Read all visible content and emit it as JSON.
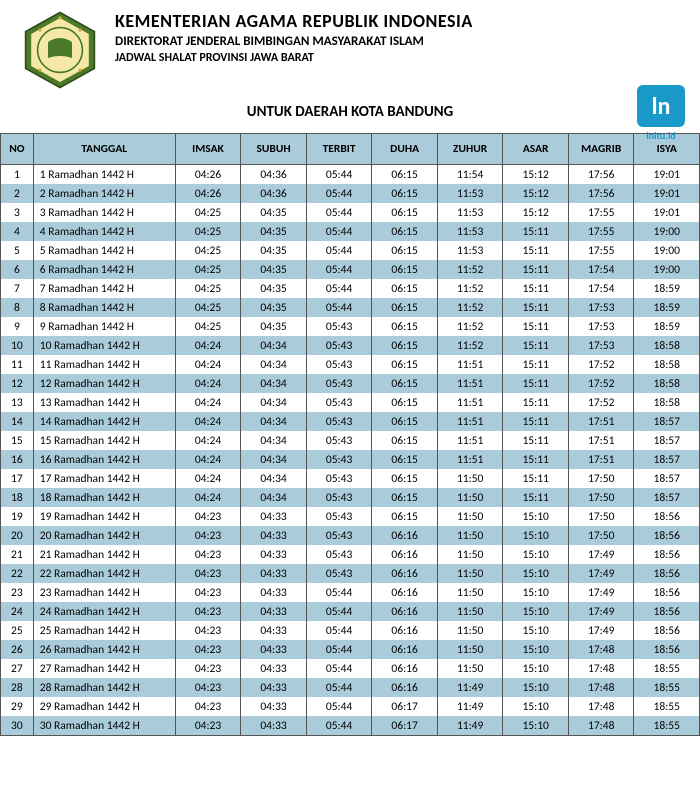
{
  "header": {
    "title": "KEMENTERIAN AGAMA REPUBLIK INDONESIA",
    "subtitle1": "DIREKTORAT JENDERAL BIMBINGAN MASYARAKAT ISLAM",
    "subtitle2": "JADWAL SHALAT PROVINSI JAWA BARAT",
    "region": "UNTUK DAERAH KOTA BANDUNG"
  },
  "brand": {
    "glyph": "ln",
    "label": "initu.id"
  },
  "logo": {
    "outer_color": "#4b7a2a",
    "inner_color": "#f6e9a8",
    "star_color": "#d4af37"
  },
  "colors": {
    "header_bg": "#aaccda",
    "row_even_bg": "#aaccda",
    "row_odd_bg": "#ffffff",
    "border": "#555555",
    "brand_bg": "#1a99c9"
  },
  "table": {
    "columns": [
      "NO",
      "TANGGAL",
      "IMSAK",
      "SUBUH",
      "TERBIT",
      "DUHA",
      "ZUHUR",
      "ASAR",
      "MAGRIB",
      "ISYA"
    ],
    "rows": [
      {
        "no": 1,
        "tanggal": "1 Ramadhan 1442 H",
        "imsak": "04:26",
        "subuh": "04:36",
        "terbit": "05:44",
        "duha": "06:15",
        "zuhur": "11:54",
        "asar": "15:12",
        "magrib": "17:56",
        "isya": "19:01"
      },
      {
        "no": 2,
        "tanggal": "2 Ramadhan 1442 H",
        "imsak": "04:26",
        "subuh": "04:36",
        "terbit": "05:44",
        "duha": "06:15",
        "zuhur": "11:53",
        "asar": "15:12",
        "magrib": "17:56",
        "isya": "19:01"
      },
      {
        "no": 3,
        "tanggal": "3 Ramadhan 1442 H",
        "imsak": "04:25",
        "subuh": "04:35",
        "terbit": "05:44",
        "duha": "06:15",
        "zuhur": "11:53",
        "asar": "15:12",
        "magrib": "17:55",
        "isya": "19:01"
      },
      {
        "no": 4,
        "tanggal": "4 Ramadhan 1442 H",
        "imsak": "04:25",
        "subuh": "04:35",
        "terbit": "05:44",
        "duha": "06:15",
        "zuhur": "11:53",
        "asar": "15:11",
        "magrib": "17:55",
        "isya": "19:00"
      },
      {
        "no": 5,
        "tanggal": "5 Ramadhan 1442 H",
        "imsak": "04:25",
        "subuh": "04:35",
        "terbit": "05:44",
        "duha": "06:15",
        "zuhur": "11:53",
        "asar": "15:11",
        "magrib": "17:55",
        "isya": "19:00"
      },
      {
        "no": 6,
        "tanggal": "6 Ramadhan 1442 H",
        "imsak": "04:25",
        "subuh": "04:35",
        "terbit": "05:44",
        "duha": "06:15",
        "zuhur": "11:52",
        "asar": "15:11",
        "magrib": "17:54",
        "isya": "19:00"
      },
      {
        "no": 7,
        "tanggal": "7 Ramadhan 1442 H",
        "imsak": "04:25",
        "subuh": "04:35",
        "terbit": "05:44",
        "duha": "06:15",
        "zuhur": "11:52",
        "asar": "15:11",
        "magrib": "17:54",
        "isya": "18:59"
      },
      {
        "no": 8,
        "tanggal": "8 Ramadhan 1442 H",
        "imsak": "04:25",
        "subuh": "04:35",
        "terbit": "05:44",
        "duha": "06:15",
        "zuhur": "11:52",
        "asar": "15:11",
        "magrib": "17:53",
        "isya": "18:59"
      },
      {
        "no": 9,
        "tanggal": "9 Ramadhan 1442 H",
        "imsak": "04:25",
        "subuh": "04:35",
        "terbit": "05:43",
        "duha": "06:15",
        "zuhur": "11:52",
        "asar": "15:11",
        "magrib": "17:53",
        "isya": "18:59"
      },
      {
        "no": 10,
        "tanggal": "10 Ramadhan 1442 H",
        "imsak": "04:24",
        "subuh": "04:34",
        "terbit": "05:43",
        "duha": "06:15",
        "zuhur": "11:52",
        "asar": "15:11",
        "magrib": "17:53",
        "isya": "18:58"
      },
      {
        "no": 11,
        "tanggal": "11 Ramadhan 1442 H",
        "imsak": "04:24",
        "subuh": "04:34",
        "terbit": "05:43",
        "duha": "06:15",
        "zuhur": "11:51",
        "asar": "15:11",
        "magrib": "17:52",
        "isya": "18:58"
      },
      {
        "no": 12,
        "tanggal": "12 Ramadhan 1442 H",
        "imsak": "04:24",
        "subuh": "04:34",
        "terbit": "05:43",
        "duha": "06:15",
        "zuhur": "11:51",
        "asar": "15:11",
        "magrib": "17:52",
        "isya": "18:58"
      },
      {
        "no": 13,
        "tanggal": "13 Ramadhan 1442 H",
        "imsak": "04:24",
        "subuh": "04:34",
        "terbit": "05:43",
        "duha": "06:15",
        "zuhur": "11:51",
        "asar": "15:11",
        "magrib": "17:52",
        "isya": "18:58"
      },
      {
        "no": 14,
        "tanggal": "14 Ramadhan 1442 H",
        "imsak": "04:24",
        "subuh": "04:34",
        "terbit": "05:43",
        "duha": "06:15",
        "zuhur": "11:51",
        "asar": "15:11",
        "magrib": "17:51",
        "isya": "18:57"
      },
      {
        "no": 15,
        "tanggal": "15 Ramadhan 1442 H",
        "imsak": "04:24",
        "subuh": "04:34",
        "terbit": "05:43",
        "duha": "06:15",
        "zuhur": "11:51",
        "asar": "15:11",
        "magrib": "17:51",
        "isya": "18:57"
      },
      {
        "no": 16,
        "tanggal": "16 Ramadhan 1442 H",
        "imsak": "04:24",
        "subuh": "04:34",
        "terbit": "05:43",
        "duha": "06:15",
        "zuhur": "11:51",
        "asar": "15:11",
        "magrib": "17:51",
        "isya": "18:57"
      },
      {
        "no": 17,
        "tanggal": "17 Ramadhan 1442 H",
        "imsak": "04:24",
        "subuh": "04:34",
        "terbit": "05:43",
        "duha": "06:15",
        "zuhur": "11:50",
        "asar": "15:11",
        "magrib": "17:50",
        "isya": "18:57"
      },
      {
        "no": 18,
        "tanggal": "18 Ramadhan 1442 H",
        "imsak": "04:24",
        "subuh": "04:34",
        "terbit": "05:43",
        "duha": "06:15",
        "zuhur": "11:50",
        "asar": "15:11",
        "magrib": "17:50",
        "isya": "18:57"
      },
      {
        "no": 19,
        "tanggal": "19 Ramadhan 1442 H",
        "imsak": "04:23",
        "subuh": "04:33",
        "terbit": "05:43",
        "duha": "06:15",
        "zuhur": "11:50",
        "asar": "15:10",
        "magrib": "17:50",
        "isya": "18:56"
      },
      {
        "no": 20,
        "tanggal": "20 Ramadhan 1442 H",
        "imsak": "04:23",
        "subuh": "04:33",
        "terbit": "05:43",
        "duha": "06:16",
        "zuhur": "11:50",
        "asar": "15:10",
        "magrib": "17:50",
        "isya": "18:56"
      },
      {
        "no": 21,
        "tanggal": "21 Ramadhan 1442 H",
        "imsak": "04:23",
        "subuh": "04:33",
        "terbit": "05:43",
        "duha": "06:16",
        "zuhur": "11:50",
        "asar": "15:10",
        "magrib": "17:49",
        "isya": "18:56"
      },
      {
        "no": 22,
        "tanggal": "22 Ramadhan 1442 H",
        "imsak": "04:23",
        "subuh": "04:33",
        "terbit": "05:43",
        "duha": "06:16",
        "zuhur": "11:50",
        "asar": "15:10",
        "magrib": "17:49",
        "isya": "18:56"
      },
      {
        "no": 23,
        "tanggal": "23 Ramadhan 1442 H",
        "imsak": "04:23",
        "subuh": "04:33",
        "terbit": "05:44",
        "duha": "06:16",
        "zuhur": "11:50",
        "asar": "15:10",
        "magrib": "17:49",
        "isya": "18:56"
      },
      {
        "no": 24,
        "tanggal": "24 Ramadhan 1442 H",
        "imsak": "04:23",
        "subuh": "04:33",
        "terbit": "05:44",
        "duha": "06:16",
        "zuhur": "11:50",
        "asar": "15:10",
        "magrib": "17:49",
        "isya": "18:56"
      },
      {
        "no": 25,
        "tanggal": "25 Ramadhan 1442 H",
        "imsak": "04:23",
        "subuh": "04:33",
        "terbit": "05:44",
        "duha": "06:16",
        "zuhur": "11:50",
        "asar": "15:10",
        "magrib": "17:49",
        "isya": "18:56"
      },
      {
        "no": 26,
        "tanggal": "26 Ramadhan 1442 H",
        "imsak": "04:23",
        "subuh": "04:33",
        "terbit": "05:44",
        "duha": "06:16",
        "zuhur": "11:50",
        "asar": "15:10",
        "magrib": "17:48",
        "isya": "18:56"
      },
      {
        "no": 27,
        "tanggal": "27 Ramadhan 1442 H",
        "imsak": "04:23",
        "subuh": "04:33",
        "terbit": "05:44",
        "duha": "06:16",
        "zuhur": "11:50",
        "asar": "15:10",
        "magrib": "17:48",
        "isya": "18:55"
      },
      {
        "no": 28,
        "tanggal": "28 Ramadhan 1442 H",
        "imsak": "04:23",
        "subuh": "04:33",
        "terbit": "05:44",
        "duha": "06:16",
        "zuhur": "11:49",
        "asar": "15:10",
        "magrib": "17:48",
        "isya": "18:55"
      },
      {
        "no": 29,
        "tanggal": "29 Ramadhan 1442 H",
        "imsak": "04:23",
        "subuh": "04:33",
        "terbit": "05:44",
        "duha": "06:17",
        "zuhur": "11:49",
        "asar": "15:10",
        "magrib": "17:48",
        "isya": "18:55"
      },
      {
        "no": 30,
        "tanggal": "30 Ramadhan 1442 H",
        "imsak": "04:23",
        "subuh": "04:33",
        "terbit": "05:44",
        "duha": "06:17",
        "zuhur": "11:49",
        "asar": "15:10",
        "magrib": "17:48",
        "isya": "18:55"
      }
    ]
  }
}
